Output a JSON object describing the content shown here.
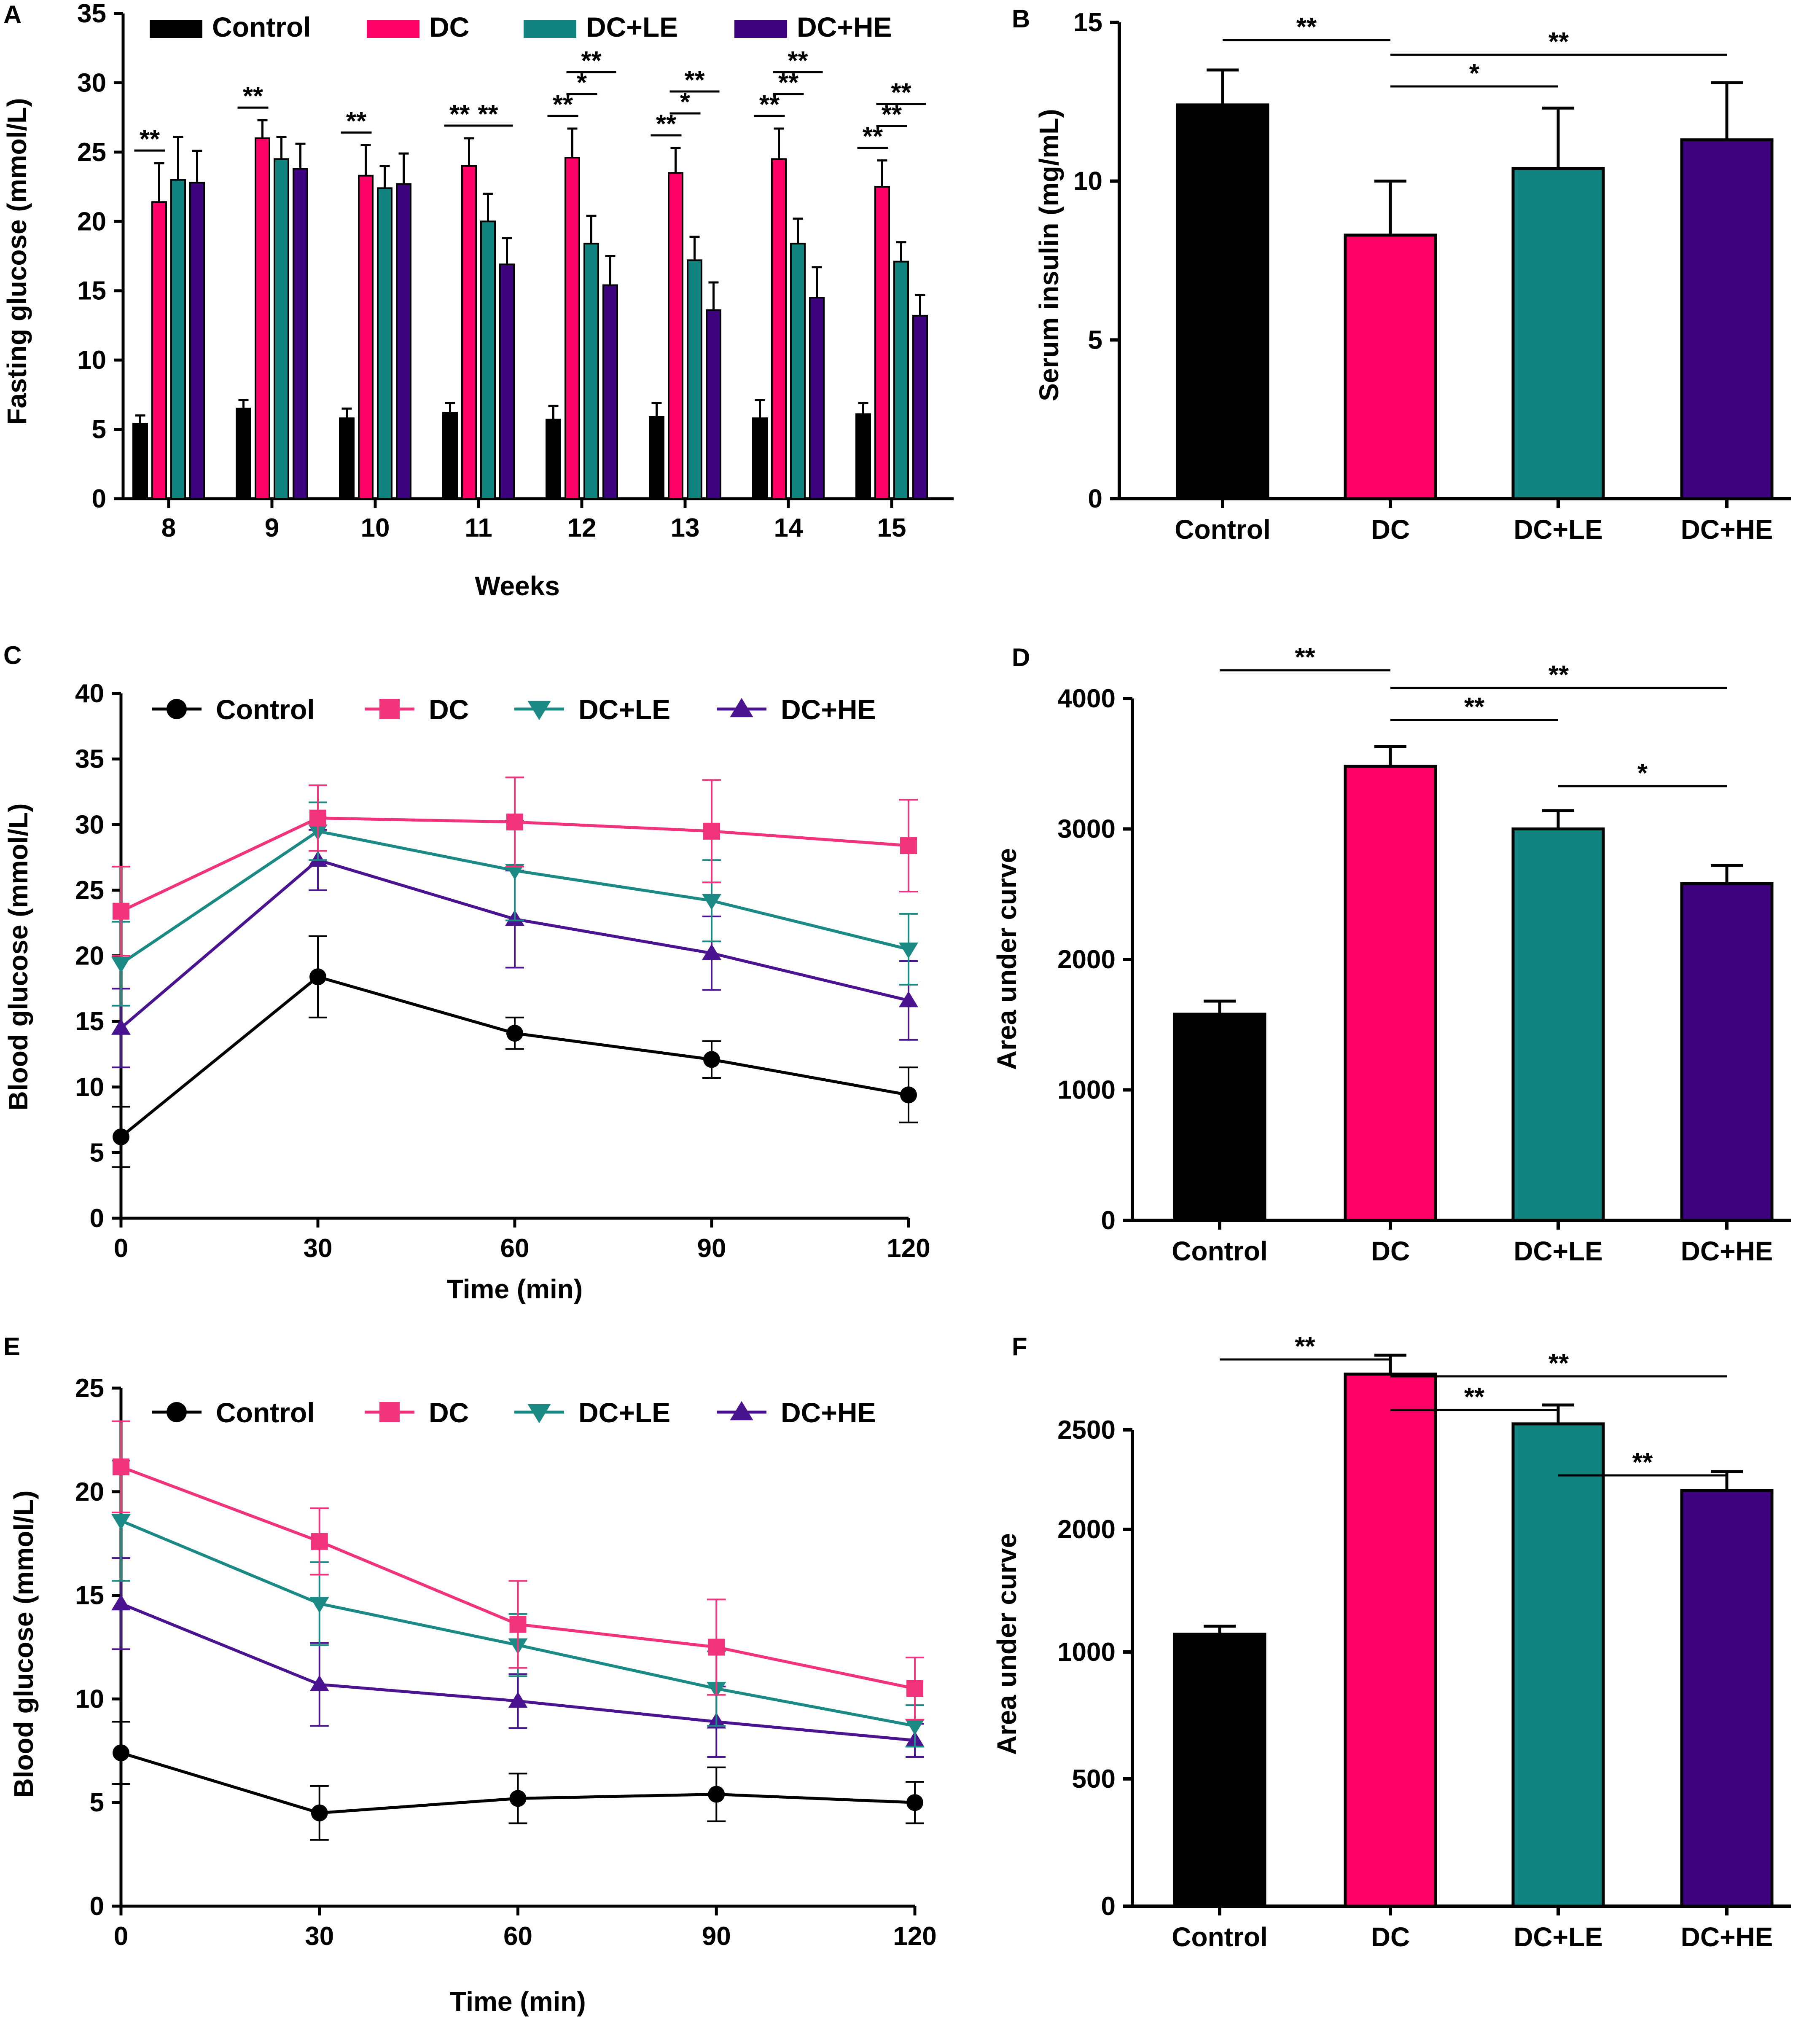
{
  "groups": [
    "Control",
    "DC",
    "DC+LE",
    "DC+HE"
  ],
  "colors": {
    "Control": "#000000",
    "DC": "#ff0066",
    "DC+LE": "#128480",
    "DC+HE": "#3e047f"
  },
  "line_colors": {
    "Control": "#000000",
    "DC": "#f0337a",
    "DC+LE": "#1b8a84",
    "DC+HE": "#4a1390"
  },
  "markers": {
    "Control": "circle",
    "DC": "square",
    "DC+LE": "triangle-down",
    "DC+HE": "triangle-up"
  },
  "chart_data": [
    {
      "panel": "A",
      "type": "bar",
      "title": "",
      "xlabel": "Weeks",
      "ylabel": "Fasting glucose (mmol/L)",
      "ylim": [
        0,
        35
      ],
      "yticks": [
        "0",
        "5",
        "10",
        "15",
        "20",
        "25",
        "30",
        "35"
      ],
      "categories": [
        "8",
        "9",
        "10",
        "11",
        "12",
        "13",
        "14",
        "15"
      ],
      "series": [
        {
          "name": "Control",
          "values": [
            5.4,
            6.5,
            5.8,
            6.2,
            5.7,
            5.9,
            5.8,
            6.1
          ],
          "errors": [
            0.6,
            0.6,
            0.7,
            0.7,
            1.0,
            1.0,
            1.3,
            0.8
          ]
        },
        {
          "name": "DC",
          "values": [
            21.4,
            26.0,
            23.3,
            24.0,
            24.6,
            23.5,
            24.5,
            22.5
          ],
          "errors": [
            2.8,
            1.3,
            2.2,
            2.0,
            2.1,
            1.8,
            2.2,
            1.9
          ]
        },
        {
          "name": "DC+LE",
          "values": [
            23.0,
            24.5,
            22.4,
            20.0,
            18.4,
            17.2,
            18.4,
            17.1
          ],
          "errors": [
            3.1,
            1.6,
            1.6,
            2.0,
            2.0,
            1.7,
            1.8,
            1.4
          ]
        },
        {
          "name": "DC+HE",
          "values": [
            22.8,
            23.8,
            22.7,
            16.9,
            15.4,
            13.6,
            14.5,
            13.2
          ],
          "errors": [
            2.3,
            1.8,
            2.2,
            1.9,
            2.1,
            2.0,
            2.2,
            1.5
          ]
        }
      ],
      "legend": [
        "Control",
        "DC",
        "DC+LE",
        "DC+HE"
      ],
      "annotations": [
        {
          "week_index": 0,
          "text": "**",
          "from": "Control",
          "to": "DC",
          "level": 1
        },
        {
          "week_index": 1,
          "text": "**",
          "from": "Control",
          "to": "DC",
          "level": 1
        },
        {
          "week_index": 2,
          "text": "**",
          "from": "Control",
          "to": "DC",
          "level": 1
        },
        {
          "week_index": 3,
          "text": "**",
          "from": "Control",
          "to": "DC",
          "level": 1
        },
        {
          "week_index": 3,
          "text": "**",
          "from": "DC",
          "to": "DC+HE",
          "level": 1
        },
        {
          "week_index": 4,
          "text": "**",
          "from": "Control",
          "to": "DC",
          "level": 1
        },
        {
          "week_index": 4,
          "text": "*",
          "from": "DC",
          "to": "DC+LE",
          "level": 2
        },
        {
          "week_index": 4,
          "text": "**",
          "from": "DC",
          "to": "DC+HE",
          "level": 3
        },
        {
          "week_index": 5,
          "text": "**",
          "from": "Control",
          "to": "DC",
          "level": 1
        },
        {
          "week_index": 5,
          "text": "*",
          "from": "DC",
          "to": "DC+LE",
          "level": 2
        },
        {
          "week_index": 5,
          "text": "**",
          "from": "DC",
          "to": "DC+HE",
          "level": 3
        },
        {
          "week_index": 6,
          "text": "**",
          "from": "Control",
          "to": "DC",
          "level": 1
        },
        {
          "week_index": 6,
          "text": "**",
          "from": "DC",
          "to": "DC+LE",
          "level": 2
        },
        {
          "week_index": 6,
          "text": "**",
          "from": "DC",
          "to": "DC+HE",
          "level": 3
        },
        {
          "week_index": 7,
          "text": "**",
          "from": "Control",
          "to": "DC",
          "level": 1
        },
        {
          "week_index": 7,
          "text": "**",
          "from": "DC",
          "to": "DC+LE",
          "level": 2
        },
        {
          "week_index": 7,
          "text": "**",
          "from": "DC",
          "to": "DC+HE",
          "level": 3
        }
      ]
    },
    {
      "panel": "B",
      "type": "bar",
      "title": "",
      "xlabel": "",
      "ylabel": "Serum insulin (mg/mL)",
      "ylim": [
        0,
        15
      ],
      "yticks": [
        "0",
        "5",
        "10",
        "15"
      ],
      "categories": [
        "Control",
        "DC",
        "DC+LE",
        "DC+HE"
      ],
      "values": [
        12.4,
        8.3,
        10.4,
        11.3
      ],
      "errors": [
        1.1,
        1.7,
        1.9,
        1.8
      ],
      "annotations": [
        {
          "from": 0,
          "to": 1,
          "text": "**"
        },
        {
          "from": 1,
          "to": 2,
          "text": "*"
        },
        {
          "from": 1,
          "to": 3,
          "text": "**"
        }
      ]
    },
    {
      "panel": "C",
      "type": "line",
      "title": "",
      "xlabel": "Time (min)",
      "ylabel": "Blood glucose (mmol/L)",
      "ylim": [
        0,
        40
      ],
      "xlim": [
        0,
        120
      ],
      "x": [
        0,
        30,
        60,
        90,
        120
      ],
      "xticks": [
        "0",
        "30",
        "60",
        "90",
        "120"
      ],
      "yticks": [
        "0",
        "5",
        "10",
        "15",
        "20",
        "25",
        "30",
        "35",
        "40"
      ],
      "series": [
        {
          "name": "Control",
          "values": [
            6.2,
            18.4,
            14.1,
            12.1,
            9.4
          ],
          "errors": [
            2.3,
            3.1,
            1.2,
            1.4,
            2.1
          ]
        },
        {
          "name": "DC",
          "values": [
            23.4,
            30.5,
            30.2,
            29.5,
            28.4
          ],
          "errors": [
            3.4,
            2.5,
            3.4,
            3.9,
            3.5
          ]
        },
        {
          "name": "DC+LE",
          "values": [
            19.4,
            29.5,
            26.5,
            24.2,
            20.5
          ],
          "errors": [
            3.2,
            2.2,
            3.8,
            3.1,
            2.7
          ]
        },
        {
          "name": "DC+HE",
          "values": [
            14.5,
            27.3,
            22.8,
            20.2,
            16.6
          ],
          "errors": [
            3.0,
            2.3,
            3.7,
            2.8,
            3.0
          ]
        }
      ],
      "legend": [
        "Control",
        "DC",
        "DC+LE",
        "DC+HE"
      ]
    },
    {
      "panel": "D",
      "type": "bar",
      "title": "",
      "xlabel": "",
      "ylabel": "Area under curve",
      "ylim": [
        0,
        4000
      ],
      "yticks": [
        "0",
        "1000",
        "2000",
        "3000",
        "4000"
      ],
      "categories": [
        "Control",
        "DC",
        "DC+LE",
        "DC+HE"
      ],
      "values": [
        1580,
        3480,
        3000,
        2580
      ],
      "errors": [
        100,
        150,
        140,
        140
      ],
      "annotations": [
        {
          "from": 0,
          "to": 1,
          "text": "**"
        },
        {
          "from": 1,
          "to": 2,
          "text": "**"
        },
        {
          "from": 1,
          "to": 3,
          "text": "**"
        },
        {
          "from": 2,
          "to": 3,
          "text": "*"
        }
      ]
    },
    {
      "panel": "E",
      "type": "line",
      "title": "",
      "xlabel": "Time (min)",
      "ylabel": "Blood glucose (mmol/L)",
      "ylim": [
        0,
        25
      ],
      "xlim": [
        0,
        120
      ],
      "x": [
        0,
        30,
        60,
        90,
        120
      ],
      "xticks": [
        "0",
        "30",
        "60",
        "90",
        "120"
      ],
      "yticks": [
        "0",
        "5",
        "10",
        "15",
        "20",
        "25"
      ],
      "series": [
        {
          "name": "Control",
          "values": [
            7.4,
            4.5,
            5.2,
            5.4,
            5.0
          ],
          "errors": [
            1.5,
            1.3,
            1.2,
            1.3,
            1.0
          ]
        },
        {
          "name": "DC",
          "values": [
            21.2,
            17.6,
            13.6,
            12.5,
            10.5
          ],
          "errors": [
            2.2,
            1.6,
            2.1,
            2.3,
            1.5
          ]
        },
        {
          "name": "DC+LE",
          "values": [
            18.6,
            14.6,
            12.6,
            10.5,
            8.7
          ],
          "errors": [
            2.9,
            2.0,
            1.5,
            1.8,
            1.0
          ]
        },
        {
          "name": "DC+HE",
          "values": [
            14.6,
            10.7,
            9.9,
            8.9,
            8.0
          ],
          "errors": [
            2.2,
            2.0,
            1.3,
            1.7,
            0.8
          ]
        }
      ],
      "legend": [
        "Control",
        "DC",
        "DC+LE",
        "DC+HE"
      ]
    },
    {
      "panel": "F",
      "type": "bar",
      "title": "",
      "xlabel": "",
      "ylabel": "Area under curve",
      "ylim_note": "tick labels as printed",
      "yticks": [
        "0",
        "500",
        "1000",
        "2000",
        "2500"
      ],
      "categories": [
        "Control",
        "DC",
        "DC+LE",
        "DC+HE"
      ],
      "values": [
        1145,
        2780,
        2530,
        2195
      ],
      "errors": [
        65,
        95,
        95,
        95
      ],
      "annotations": [
        {
          "from": 0,
          "to": 1,
          "text": "**"
        },
        {
          "from": 1,
          "to": 2,
          "text": "**"
        },
        {
          "from": 1,
          "to": 3,
          "text": "**"
        },
        {
          "from": 2,
          "to": 3,
          "text": "**"
        }
      ]
    }
  ]
}
